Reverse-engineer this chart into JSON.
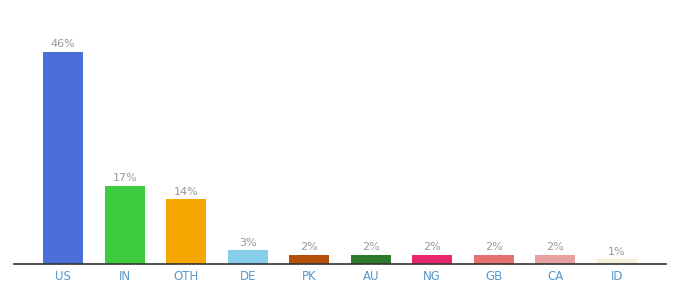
{
  "categories": [
    "US",
    "IN",
    "OTH",
    "DE",
    "PK",
    "AU",
    "NG",
    "GB",
    "CA",
    "ID"
  ],
  "values": [
    46,
    17,
    14,
    3,
    2,
    2,
    2,
    2,
    2,
    1
  ],
  "bar_colors": [
    "#4a6fdb",
    "#3dcc3d",
    "#f5a700",
    "#87ceeb",
    "#b5500a",
    "#2d7a2d",
    "#e8256e",
    "#e87070",
    "#e8a0a0",
    "#f5f0d8"
  ],
  "ylim": [
    0,
    52
  ],
  "background_color": "#ffffff",
  "label_color": "#999999",
  "label_fontsize": 8.0,
  "tick_fontsize": 8.5,
  "tick_color": "#5599cc"
}
